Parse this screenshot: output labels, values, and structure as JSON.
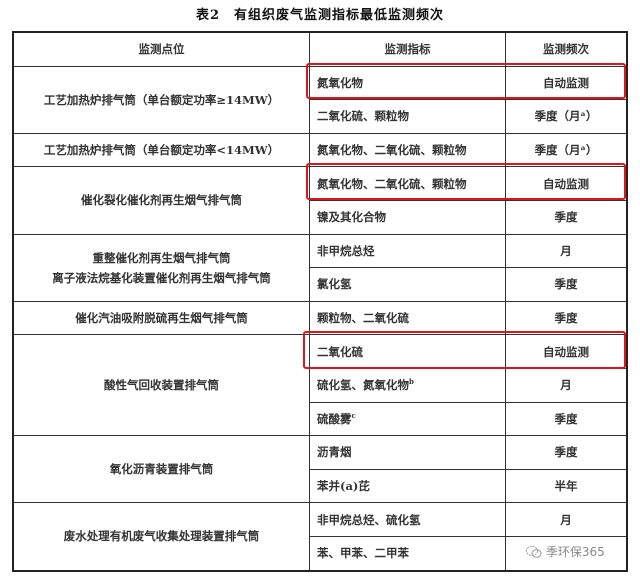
{
  "title": "表2　有组织废气监测指标最低监测频次",
  "headers": [
    "监测点位",
    "监测指标",
    "监测频次"
  ],
  "rows": [
    {
      "point": "工艺加热炉排气筒（单台额定功率≥14MW）",
      "items": [
        {
          "indicator": "氮氧化物",
          "sup": "",
          "freq": "自动监测",
          "highlight": true
        },
        {
          "indicator": "二氧化硫、颗粒物",
          "sup": "",
          "freq": "季度（月ᵃ）"
        }
      ]
    },
    {
      "point": "工艺加热炉排气筒（单台额定功率<14MW）",
      "items": [
        {
          "indicator": "氮氧化物、二氧化硫、颗粒物",
          "sup": "",
          "freq": "季度（月ᵃ）"
        }
      ]
    },
    {
      "point": "催化裂化催化剂再生烟气排气筒",
      "items": [
        {
          "indicator": "氮氧化物、二氧化硫、颗粒物",
          "sup": "",
          "freq": "自动监测",
          "highlight": true
        },
        {
          "indicator": "镍及其化合物",
          "sup": "",
          "freq": "季度"
        }
      ]
    },
    {
      "point": "重整催化剂再生烟气排气筒",
      "point2": "离子液法烷基化装置催化剂再生烟气排气筒",
      "items": [
        {
          "indicator": "非甲烷总烃",
          "sup": "",
          "freq": "月"
        },
        {
          "indicator": "氯化氢",
          "sup": "",
          "freq": "季度"
        }
      ]
    },
    {
      "point": "催化汽油吸附脱硫再生烟气排气筒",
      "items": [
        {
          "indicator": "颗粒物、二氧化硫",
          "sup": "",
          "freq": "季度"
        }
      ]
    },
    {
      "point": "酸性气回收装置排气筒",
      "items": [
        {
          "indicator": "二氧化硫",
          "sup": "",
          "freq": "自动监测",
          "highlight": true
        },
        {
          "indicator": "硫化氢、氮氧化物",
          "sup": "b",
          "freq": "月"
        },
        {
          "indicator": "硫酸雾",
          "sup": "c",
          "freq": "季度"
        }
      ]
    },
    {
      "point": "氧化沥青装置排气筒",
      "items": [
        {
          "indicator": "沥青烟",
          "sup": "",
          "freq": "季度"
        },
        {
          "indicator": "苯并(a)芘",
          "sup": "",
          "freq": "半年"
        }
      ]
    },
    {
      "point": "废水处理有机废气收集处理装置排气筒",
      "items": [
        {
          "indicator": "非甲烷总烃、硫化氢",
          "sup": "",
          "freq": "月"
        },
        {
          "indicator": "苯、甲苯、二甲苯",
          "sup": "",
          "freq": ""
        }
      ]
    }
  ],
  "highlight_color": "#e0141b",
  "watermark": {
    "icon": "wechat-icon",
    "text": "季环保365"
  }
}
